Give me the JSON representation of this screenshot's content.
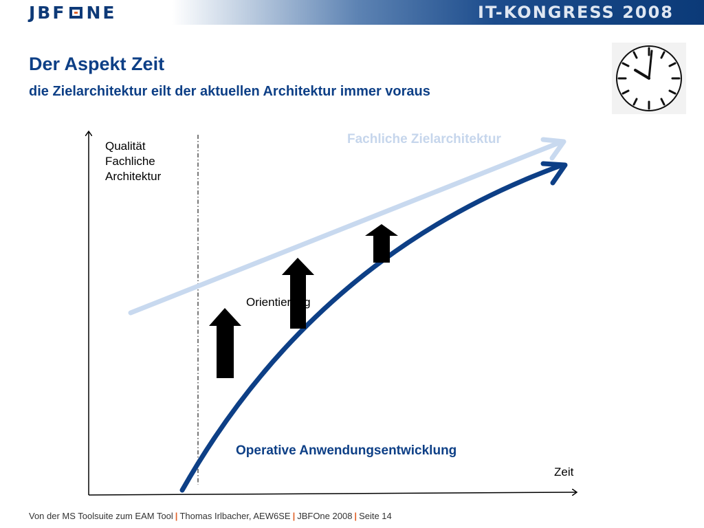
{
  "header": {
    "logo_text": "JBF",
    "logo_text_tail": "NE",
    "event_title": "IT-KONGRESS 2008"
  },
  "slide": {
    "title": "Der Aspekt Zeit",
    "subtitle": "die Zielarchitektur eilt der aktuellen Architektur immer voraus"
  },
  "diagram": {
    "y_axis_label": "Qualität Fachliche Architektur",
    "x_axis_label": "Zeit",
    "target_line_label": "Fachliche Zielarchitektur",
    "operative_line_label": "Operative Anwendungsentwicklung",
    "orientation_label": "Orientierung",
    "colors": {
      "target_line": "#c8d9ef",
      "operative_line": "#0d3f86",
      "arrows": "#000000"
    },
    "icons": [
      "clock-icon"
    ]
  },
  "footer": {
    "part1": "Von der MS Toolsuite zum EAM Tool",
    "part2": "Thomas Irlbacher, AEW6SE",
    "part3": "JBFOne 2008",
    "part4": "Seite 14"
  }
}
